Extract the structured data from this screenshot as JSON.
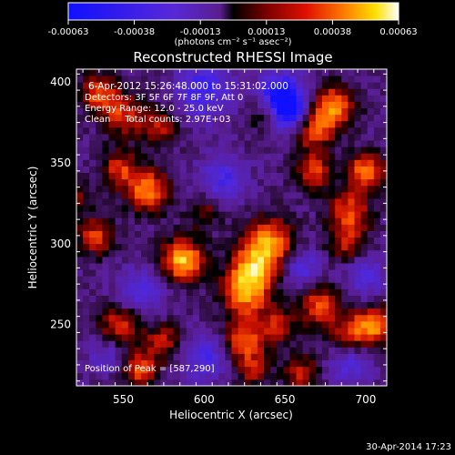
{
  "chart_data": {
    "type": "heatmap",
    "title": "Reconstructed RHESSI Image",
    "xlabel": "Heliocentric X (arcsec)",
    "ylabel": "Heliocentric Y (arcsec)",
    "xlim": [
      521,
      713
    ],
    "ylim": [
      212,
      408
    ],
    "xticks": [
      550,
      600,
      650,
      700
    ],
    "yticks": [
      250,
      300,
      350,
      400
    ],
    "colorbar": {
      "unit_label": "(photons cm⁻² s⁻¹ asec⁻²)",
      "ticks": [
        "-0.00063",
        "-0.00038",
        "-0.00013",
        "0.00013",
        "0.00038",
        "0.00063"
      ],
      "range": [
        -0.00063,
        0.00063
      ]
    },
    "annotations": [
      "6-Apr-2012 15:26:48.000 to 15:31:02.000",
      "Detectors: 3F 5F 6F 7F 8F 9F, Att 0",
      "Energy Range: 12.0 - 25.0 keV",
      "Clean     Total counts: 2.97E+03"
    ],
    "peak_label": "Position of Peak = [587,290]",
    "peak": [
      587,
      290
    ],
    "grid": false,
    "sources": [
      {
        "x": 587,
        "y": 290,
        "amp": 0.00062,
        "w": 9
      },
      {
        "x": 640,
        "y": 300,
        "amp": 0.00052,
        "w": 11
      },
      {
        "x": 630,
        "y": 283,
        "amp": 0.00048,
        "w": 10
      },
      {
        "x": 625,
        "y": 268,
        "amp": 0.00042,
        "w": 10
      },
      {
        "x": 565,
        "y": 333,
        "amp": 0.0005,
        "w": 9
      },
      {
        "x": 548,
        "y": 347,
        "amp": 0.00034,
        "w": 8
      },
      {
        "x": 535,
        "y": 393,
        "amp": 0.0004,
        "w": 8
      },
      {
        "x": 550,
        "y": 380,
        "amp": 0.00034,
        "w": 9
      },
      {
        "x": 572,
        "y": 372,
        "amp": 0.0003,
        "w": 8
      },
      {
        "x": 533,
        "y": 305,
        "amp": 0.00036,
        "w": 8
      },
      {
        "x": 548,
        "y": 250,
        "amp": 0.00036,
        "w": 9
      },
      {
        "x": 575,
        "y": 240,
        "amp": 0.0003,
        "w": 8
      },
      {
        "x": 560,
        "y": 222,
        "amp": 0.0004,
        "w": 8
      },
      {
        "x": 625,
        "y": 240,
        "amp": 0.00042,
        "w": 9
      },
      {
        "x": 645,
        "y": 250,
        "amp": 0.0003,
        "w": 8
      },
      {
        "x": 672,
        "y": 262,
        "amp": 0.0004,
        "w": 9
      },
      {
        "x": 690,
        "y": 245,
        "amp": 0.0003,
        "w": 8
      },
      {
        "x": 705,
        "y": 250,
        "amp": 0.0005,
        "w": 8
      },
      {
        "x": 680,
        "y": 385,
        "amp": 0.0005,
        "w": 9
      },
      {
        "x": 668,
        "y": 370,
        "amp": 0.0004,
        "w": 8
      },
      {
        "x": 700,
        "y": 345,
        "amp": 0.00048,
        "w": 8
      },
      {
        "x": 668,
        "y": 345,
        "amp": 0.00036,
        "w": 8
      },
      {
        "x": 690,
        "y": 320,
        "amp": 0.0004,
        "w": 9
      },
      {
        "x": 688,
        "y": 300,
        "amp": 0.0003,
        "w": 8
      },
      {
        "x": 640,
        "y": 380,
        "amp": 0.00024,
        "w": 8
      },
      {
        "x": 660,
        "y": 220,
        "amp": 0.0003,
        "w": 8
      },
      {
        "x": 630,
        "y": 222,
        "amp": 0.00026,
        "w": 7
      },
      {
        "x": 600,
        "y": 320,
        "amp": 0.00024,
        "w": 7
      },
      {
        "x": 520,
        "y": 330,
        "amp": 0.0002,
        "w": 7
      },
      {
        "x": 648,
        "y": 392,
        "amp": -0.0006,
        "w": 9
      },
      {
        "x": 652,
        "y": 380,
        "amp": -0.00045,
        "w": 8
      },
      {
        "x": 600,
        "y": 395,
        "amp": -0.00035,
        "w": 12
      },
      {
        "x": 560,
        "y": 270,
        "amp": -0.00028,
        "w": 10
      },
      {
        "x": 612,
        "y": 340,
        "amp": -0.0003,
        "w": 10
      },
      {
        "x": 660,
        "y": 285,
        "amp": -0.00028,
        "w": 9
      },
      {
        "x": 700,
        "y": 280,
        "amp": -0.00026,
        "w": 9
      },
      {
        "x": 600,
        "y": 230,
        "amp": -0.0003,
        "w": 10
      },
      {
        "x": 690,
        "y": 225,
        "amp": -0.00024,
        "w": 9
      },
      {
        "x": 540,
        "y": 230,
        "amp": -0.0002,
        "w": 8
      }
    ]
  },
  "footer": {
    "timestamp": "30-Apr-2014 17:23"
  }
}
